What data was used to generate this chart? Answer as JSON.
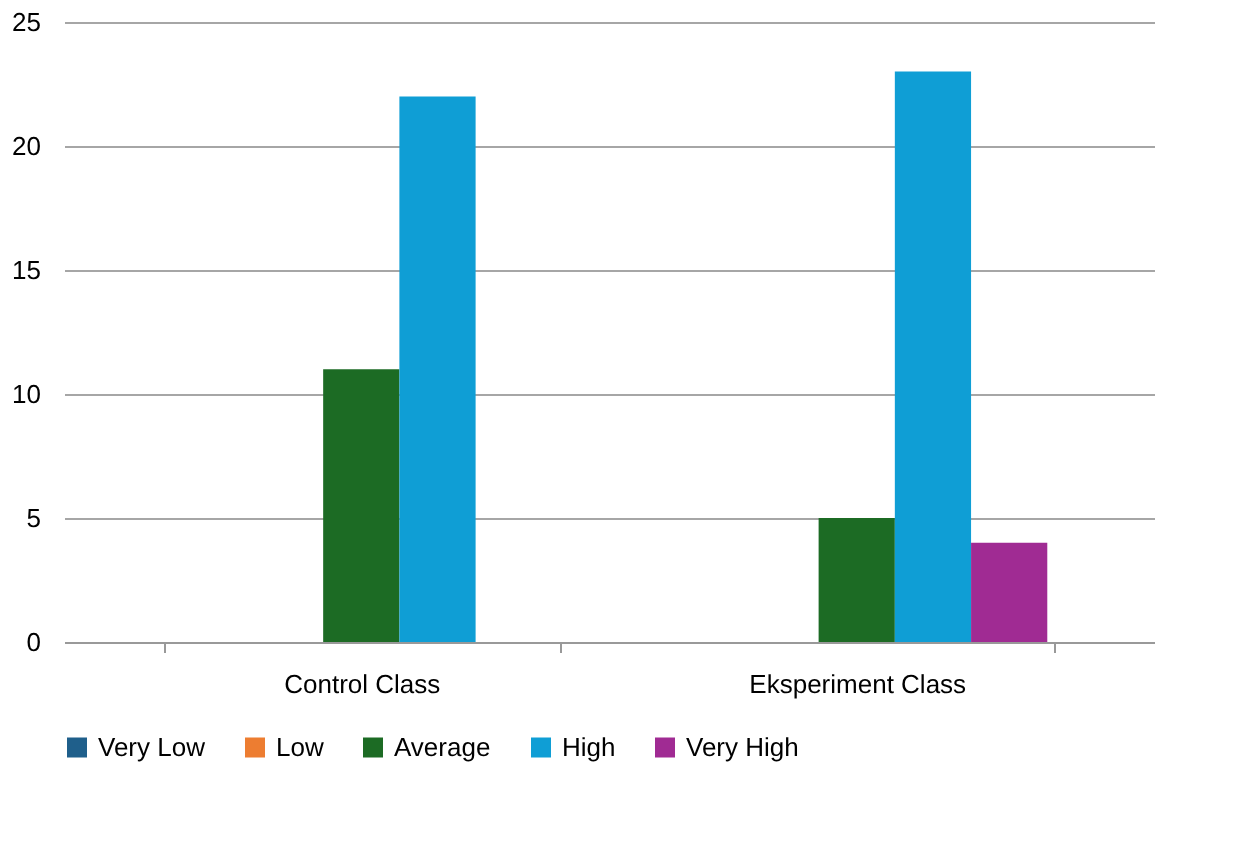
{
  "chart_data": {
    "type": "bar",
    "categories": [
      "Control Class",
      "Eksperiment Class"
    ],
    "series": [
      {
        "name": "Very Low",
        "color": "#1f5f8b",
        "values": [
          0,
          0
        ]
      },
      {
        "name": "Low",
        "color": "#ed7d31",
        "values": [
          0,
          0
        ]
      },
      {
        "name": "Average",
        "color": "#1c6b24",
        "values": [
          11,
          5
        ]
      },
      {
        "name": "High",
        "color": "#0f9ed5",
        "values": [
          22,
          23
        ]
      },
      {
        "name": "Very High",
        "color": "#a02b93",
        "values": [
          0,
          4
        ]
      }
    ],
    "ylim": [
      0,
      25
    ],
    "yticks": [
      0,
      5,
      10,
      15,
      20,
      25
    ],
    "grid": "y",
    "legend": "bottom"
  }
}
